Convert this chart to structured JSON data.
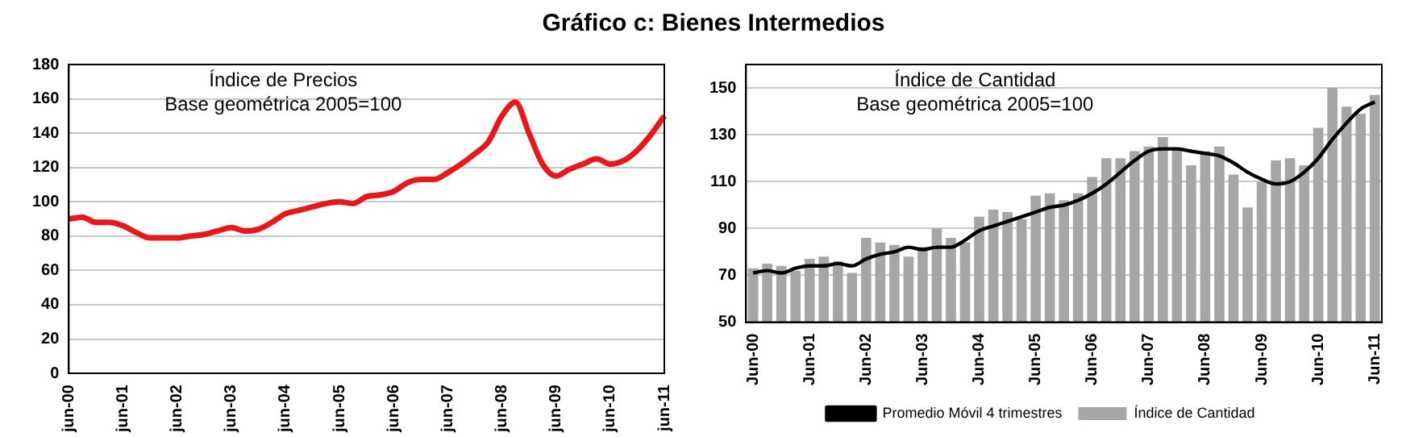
{
  "chart_data": [
    {
      "type": "line",
      "title": "Gráfico c: Bienes Intermedios",
      "annotations": [
        "Índice de Precios",
        "Base geométrica 2005=100"
      ],
      "categories": [
        "jun-00",
        null,
        null,
        null,
        "jun-01",
        null,
        null,
        null,
        "jun-02",
        null,
        null,
        null,
        "jun-03",
        null,
        null,
        null,
        "jun-04",
        null,
        null,
        null,
        "jun-05",
        null,
        null,
        null,
        "jun-06",
        null,
        null,
        null,
        "jun-07",
        null,
        null,
        null,
        "jun-08",
        null,
        null,
        null,
        "jun-09",
        null,
        null,
        null,
        "jun-10",
        null,
        null,
        null,
        "jun-11"
      ],
      "series": [
        {
          "color": "#e8171b",
          "values": [
            90,
            91,
            88,
            88,
            86,
            82,
            79,
            79,
            79,
            80,
            81,
            83,
            85,
            83,
            84,
            88,
            93,
            95,
            97,
            99,
            100,
            99,
            103,
            104,
            106,
            111,
            113,
            113,
            117,
            122,
            128,
            135,
            150,
            158,
            140,
            122,
            115,
            119,
            122,
            125,
            122,
            124,
            130,
            139,
            150
          ]
        }
      ],
      "ylim": [
        0,
        180
      ],
      "yticks": [
        0,
        20,
        40,
        60,
        80,
        100,
        120,
        140,
        160,
        180
      ],
      "grid": "y",
      "marker": "none",
      "line_style": "solid"
    },
    {
      "type": "bar",
      "annotations": [
        "Índice de Cantidad",
        "Base geométrica 2005=100"
      ],
      "categories": [
        "Jun-00",
        null,
        null,
        null,
        "Jun-01",
        null,
        null,
        null,
        "Jun-02",
        null,
        null,
        null,
        "Jun-03",
        null,
        null,
        null,
        "Jun-04",
        null,
        null,
        null,
        "Jun-05",
        null,
        null,
        null,
        "Jun-06",
        null,
        null,
        null,
        "Jun-07",
        null,
        null,
        null,
        "Jun-08",
        null,
        null,
        null,
        "Jun-09",
        null,
        null,
        null,
        "Jun-10",
        null,
        null,
        null,
        "Jun-11"
      ],
      "series": [
        {
          "name": "Índice de Cantidad",
          "type": "bar",
          "color": "#a6a6a6",
          "values": [
            73,
            75,
            74,
            72,
            77,
            78,
            76,
            71,
            86,
            84,
            83,
            78,
            82,
            90,
            86,
            84,
            95,
            98,
            97,
            94,
            104,
            105,
            102,
            105,
            112,
            120,
            120,
            123,
            125,
            129,
            124,
            117,
            123,
            125,
            113,
            99,
            110,
            119,
            120,
            117,
            133,
            150,
            142,
            139,
            147
          ]
        },
        {
          "name": "Promedio Móvil 4 trimestres",
          "type": "line",
          "color": "#000000",
          "values": [
            71,
            72,
            71,
            73,
            74,
            74,
            75,
            74,
            77,
            79,
            80,
            82,
            81,
            82,
            82,
            85,
            89,
            91,
            93,
            95,
            97,
            99,
            100,
            102,
            105,
            109,
            114,
            119,
            123,
            124,
            124,
            123,
            122,
            121,
            118,
            114,
            111,
            109,
            110,
            114,
            120,
            128,
            135,
            141,
            144
          ]
        }
      ],
      "ylim": [
        50,
        160
      ],
      "yticks": [
        50,
        70,
        90,
        110,
        130,
        150
      ],
      "grid": "y",
      "legend": "bottom",
      "marker": "none",
      "line_style": "solid"
    }
  ]
}
